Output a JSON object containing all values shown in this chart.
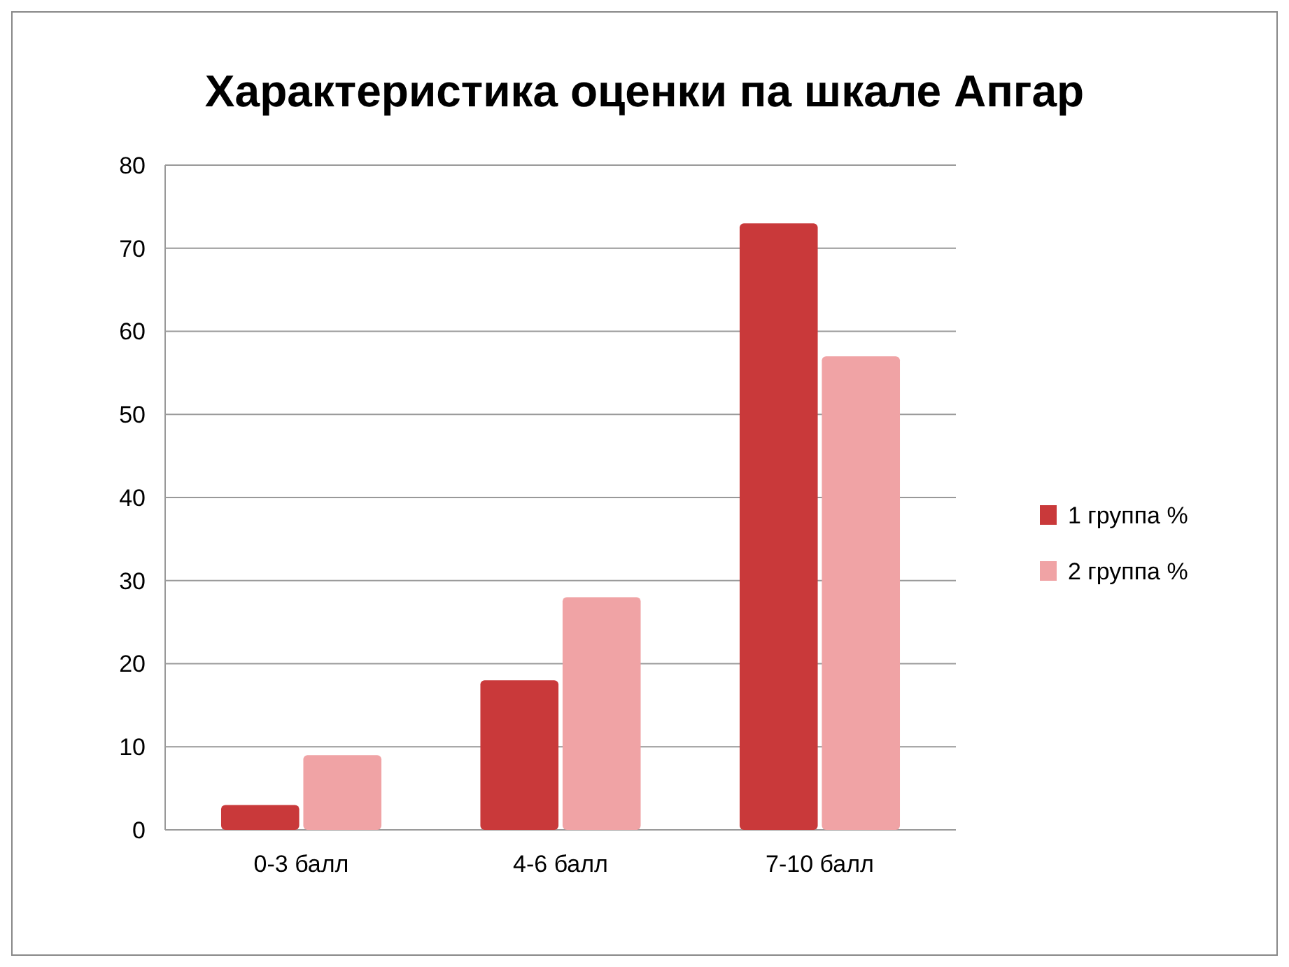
{
  "chart_data": {
    "type": "bar",
    "title": "Характеристика оценки па шкале Апгар",
    "categories": [
      "0-3 балл",
      "4-6 балл",
      "7-10 балл"
    ],
    "series": [
      {
        "name": "1 группа %",
        "color": "#c9393a",
        "values": [
          3,
          18,
          73
        ]
      },
      {
        "name": "2 группа %",
        "color": "#f0a3a5",
        "values": [
          9,
          28,
          57
        ]
      }
    ],
    "ylim": [
      0,
      80
    ],
    "yticks": [
      0,
      10,
      20,
      30,
      40,
      50,
      60,
      70,
      80
    ],
    "grid": "y",
    "legend": "right"
  }
}
